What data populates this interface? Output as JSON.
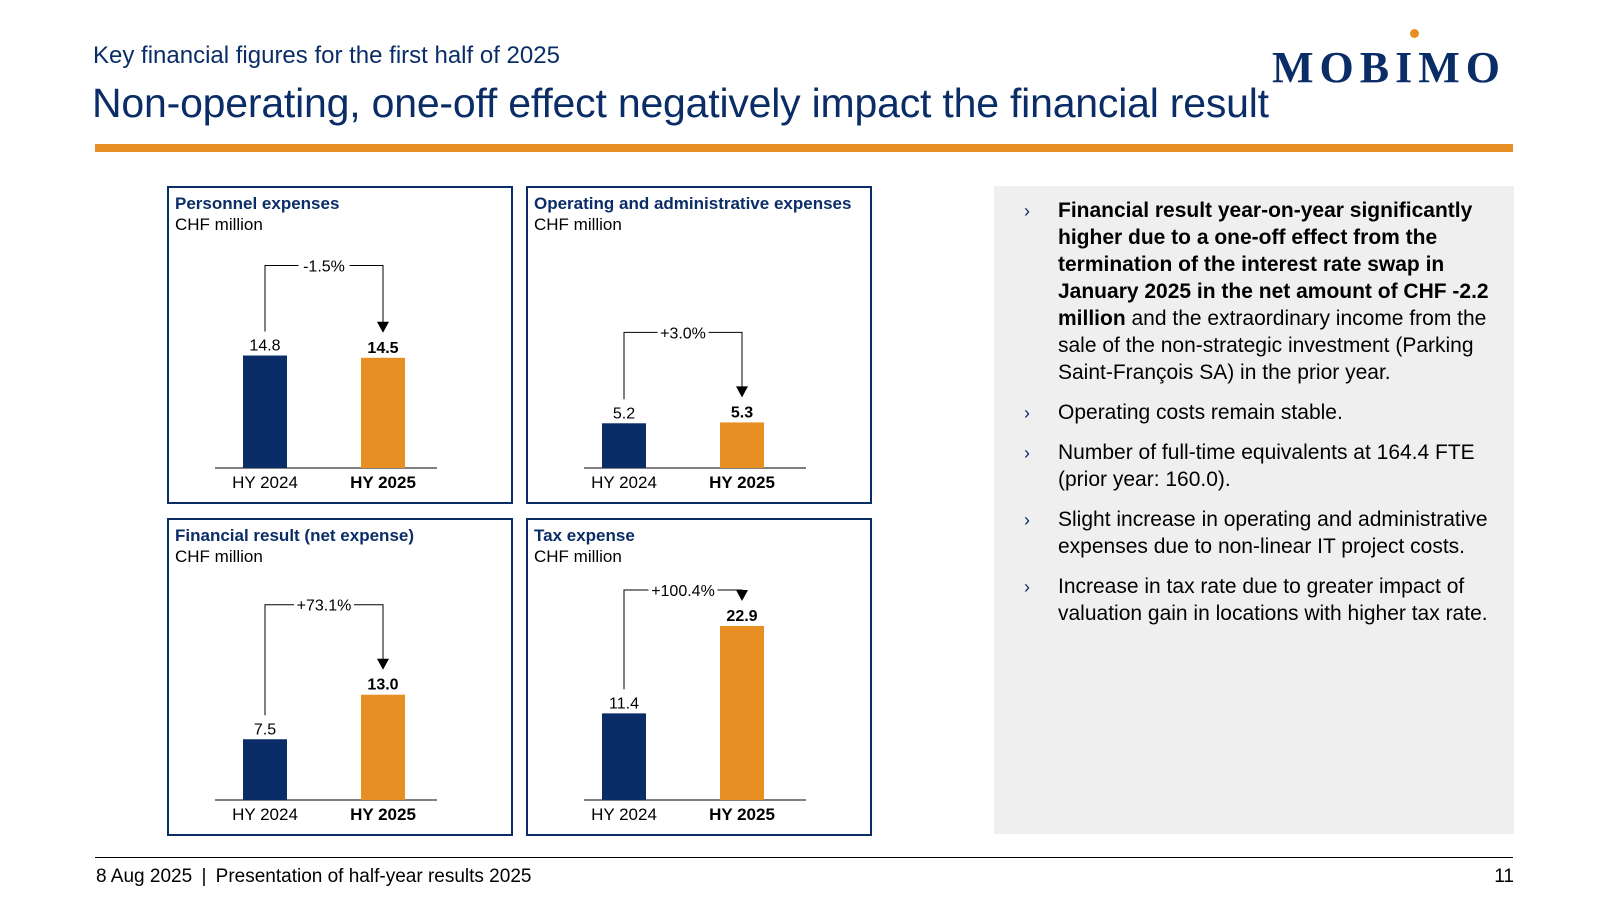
{
  "header": {
    "subtitle": "Key financial figures for the first half of 2025",
    "title": "Non-operating, one-off effect negatively impact the financial result",
    "logo_text": "MOBIMO"
  },
  "colors": {
    "navy": "#0b2d67",
    "orange": "#e88f23",
    "panel_bg": "#efefef"
  },
  "chart_data": [
    {
      "type": "bar",
      "title": "Personnel expenses",
      "ylabel": "CHF million",
      "categories": [
        "HY 2024",
        "HY 2025"
      ],
      "values": [
        14.8,
        14.5
      ],
      "value_labels": [
        "14.8",
        "14.5"
      ],
      "change_label": "-1.5%"
    },
    {
      "type": "bar",
      "title": "Operating and administrative expenses",
      "ylabel": "CHF million",
      "categories": [
        "HY 2024",
        "HY 2025"
      ],
      "values": [
        5.2,
        5.3
      ],
      "value_labels": [
        "5.2",
        "5.3"
      ],
      "change_label": "+3.0%"
    },
    {
      "type": "bar",
      "title": "Financial result (net expense)",
      "ylabel": "CHF million",
      "categories": [
        "HY 2024",
        "HY 2025"
      ],
      "values": [
        7.5,
        13.0
      ],
      "value_labels": [
        "7.5",
        "13.0"
      ],
      "change_label": "+73.1%"
    },
    {
      "type": "bar",
      "title": "Tax expense",
      "ylabel": "CHF million",
      "categories": [
        "HY 2024",
        "HY 2025"
      ],
      "values": [
        11.4,
        22.9
      ],
      "value_labels": [
        "11.4",
        "22.9"
      ],
      "change_label": "+100.4%"
    }
  ],
  "notes": [
    {
      "bold": "Financial result year-on-year significantly higher due to a one-off effect from the termination of the interest rate swap in January 2025 in the net amount of CHF -2.2 million",
      "text": " and the extraordinary income from the sale of the non-strategic investment (Parking Saint-François SA) in the prior year."
    },
    {
      "bold": "",
      "text": "Operating costs remain stable."
    },
    {
      "bold": "",
      "text": "Number of full-time equivalents at 164.4 FTE (prior year: 160.0)."
    },
    {
      "bold": "",
      "text": "Slight increase in operating and administrative expenses due to non-linear IT project costs."
    },
    {
      "bold": "",
      "text": "Increase in tax rate due to greater impact of valuation gain in locations with higher tax rate."
    }
  ],
  "bullet_glyph": "›",
  "footer": {
    "date": "8 Aug 2025",
    "separator": "|",
    "presentation": "Presentation of half-year results 2025",
    "page_number": "11"
  }
}
